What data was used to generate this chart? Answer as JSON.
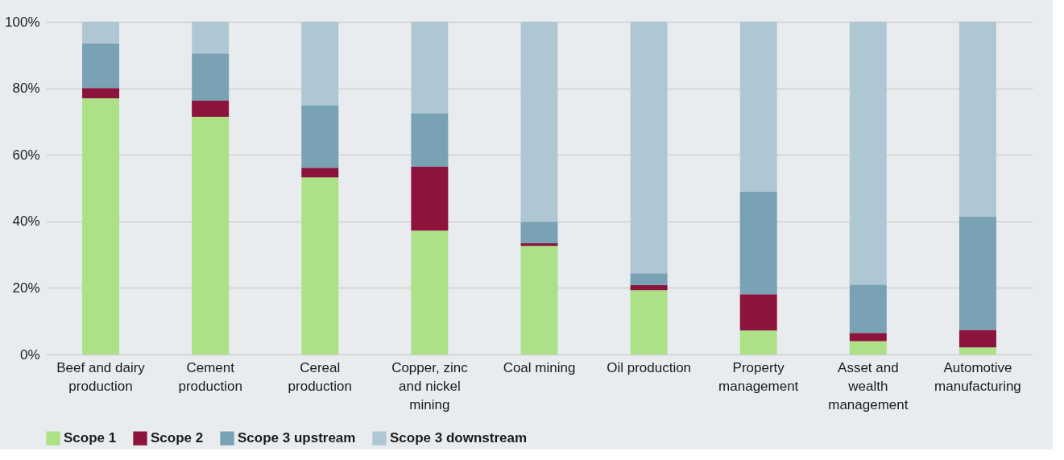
{
  "chart_data": {
    "type": "bar",
    "stacked": true,
    "categories": [
      "Beef and dairy production",
      "Cement production",
      "Cereal production",
      "Copper, zinc and nickel mining",
      "Coal mining",
      "Oil production",
      "Property management",
      "Asset and wealth management",
      "Automotive manufacturing"
    ],
    "series": [
      {
        "name": "Scope 1",
        "color": "#ace187",
        "values": [
          77.0,
          71.4,
          53.2,
          37.2,
          32.6,
          19.3,
          7.2,
          4.0,
          2.1
        ]
      },
      {
        "name": "Scope 2",
        "color": "#8c143c",
        "values": [
          3.1,
          4.9,
          2.9,
          19.2,
          0.8,
          1.5,
          10.9,
          2.5,
          5.3
        ]
      },
      {
        "name": "Scope 3 upstream",
        "color": "#79a2b5",
        "values": [
          13.4,
          14.2,
          18.7,
          16.0,
          6.5,
          3.6,
          30.8,
          14.5,
          34.0
        ]
      },
      {
        "name": "Scope 3 downstream",
        "color": "#afc7d3",
        "values": [
          6.5,
          9.5,
          25.2,
          27.6,
          60.1,
          75.6,
          51.1,
          79.0,
          58.6
        ]
      }
    ],
    "ylim": [
      0,
      100
    ],
    "yticks": [
      {
        "value": 0,
        "label": "0%"
      },
      {
        "value": 20,
        "label": "20%"
      },
      {
        "value": 40,
        "label": "40%"
      },
      {
        "value": 60,
        "label": "60%"
      },
      {
        "value": 80,
        "label": "80%"
      },
      {
        "value": 100,
        "label": "100%"
      }
    ],
    "grid": "y",
    "legend": "bottom"
  }
}
